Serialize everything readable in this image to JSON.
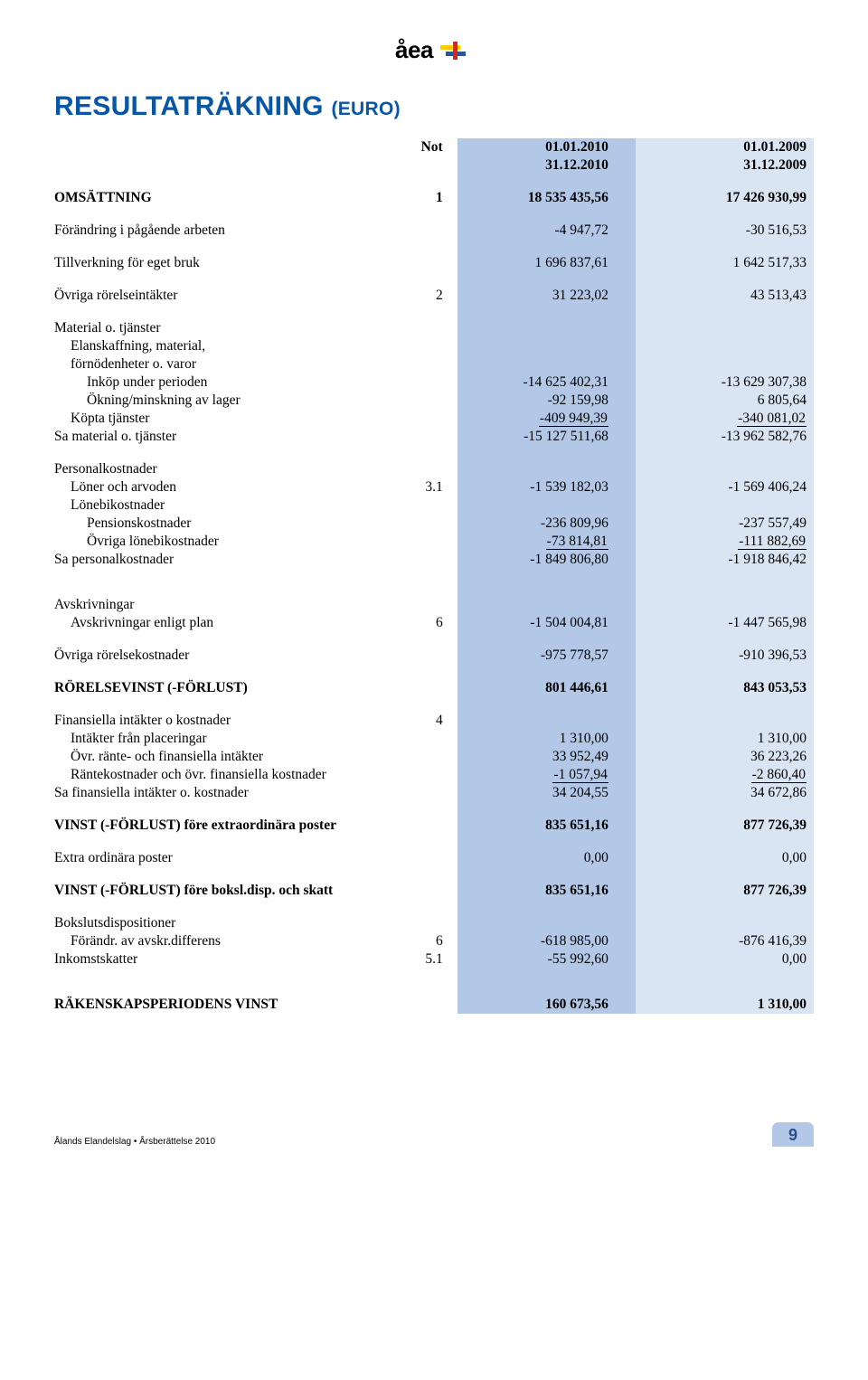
{
  "logo_text": "åea",
  "title_main": "RESULTATRÄKNING",
  "title_sub": "(EURO)",
  "title_color": "#0857a6",
  "header": {
    "not": "Not",
    "p1_a": "01.01.2010",
    "p1_b": "31.12.2010",
    "p2_a": "01.01.2009",
    "p2_b": "31.12.2009"
  },
  "rows": [
    {
      "label": "OMSÄTTNING",
      "not": "1",
      "v1": "18 535 435,56",
      "v2": "17 426 930,99",
      "bold": true,
      "spacer_before": true
    },
    {
      "label": "Förändring i pågående arbeten",
      "not": "",
      "v1": "-4 947,72",
      "v2": "-30 516,53",
      "spacer_before": true
    },
    {
      "label": "Tillverkning för eget bruk",
      "not": "",
      "v1": "1 696 837,61",
      "v2": "1 642 517,33",
      "spacer_before": true
    },
    {
      "label": "Övriga rörelseintäkter",
      "not": "2",
      "v1": "31 223,02",
      "v2": "43 513,43",
      "spacer_before": true
    },
    {
      "label": "Material o. tjänster",
      "not": "",
      "v1": "",
      "v2": "",
      "spacer_before": true
    },
    {
      "label": "Elanskaffning, material,",
      "not": "",
      "v1": "",
      "v2": "",
      "indent": 1
    },
    {
      "label": "förnödenheter o. varor",
      "not": "",
      "v1": "",
      "v2": "",
      "indent": 1
    },
    {
      "label": "Inköp under perioden",
      "not": "",
      "v1": "-14 625 402,31",
      "v2": "-13 629 307,38",
      "indent": 2
    },
    {
      "label": "Ökning/minskning av lager",
      "not": "",
      "v1": "-92 159,98",
      "v2": "6 805,64",
      "indent": 2
    },
    {
      "label": "Köpta tjänster",
      "not": "",
      "v1": "-409 949,39",
      "v2": "-340 081,02",
      "indent": 1,
      "underline": true
    },
    {
      "label": "Sa material o. tjänster",
      "not": "",
      "v1": "-15 127 511,68",
      "v2": "-13 962 582,76"
    },
    {
      "label": "Personalkostnader",
      "not": "",
      "v1": "",
      "v2": "",
      "spacer_before": true
    },
    {
      "label": "Löner och arvoden",
      "not": "3.1",
      "v1": "-1 539 182,03",
      "v2": "-1 569 406,24",
      "indent": 1
    },
    {
      "label": "Lönebikostnader",
      "not": "",
      "v1": "",
      "v2": "",
      "indent": 1
    },
    {
      "label": "Pensionskostnader",
      "not": "",
      "v1": "-236 809,96",
      "v2": "-237 557,49",
      "indent": 2
    },
    {
      "label": "Övriga lönebikostnader",
      "not": "",
      "v1": "-73 814,81",
      "v2": "-111 882,69",
      "indent": 2,
      "underline": true
    },
    {
      "label": "Sa personalkostnader",
      "not": "",
      "v1": "-1 849 806,80",
      "v2": "-1 918 846,42"
    },
    {
      "label": "Avskrivningar",
      "not": "",
      "v1": "",
      "v2": "",
      "spacer_before": true,
      "spacer_before_big": true
    },
    {
      "label": "Avskrivningar enligt plan",
      "not": "6",
      "v1": "-1 504 004,81",
      "v2": "-1 447 565,98",
      "indent": 1
    },
    {
      "label": "Övriga rörelsekostnader",
      "not": "",
      "v1": "-975 778,57",
      "v2": "-910 396,53",
      "spacer_before": true
    },
    {
      "label": "RÖRELSEVINST (-FÖRLUST)",
      "not": "",
      "v1": "801 446,61",
      "v2": "843 053,53",
      "bold": true,
      "spacer_before": true
    },
    {
      "label": "Finansiella intäkter o kostnader",
      "not": "4",
      "v1": "",
      "v2": "",
      "spacer_before": true
    },
    {
      "label": "Intäkter från placeringar",
      "not": "",
      "v1": "1 310,00",
      "v2": "1 310,00",
      "indent": 1
    },
    {
      "label": "Övr. ränte- och finansiella intäkter",
      "not": "",
      "v1": "33 952,49",
      "v2": "36 223,26",
      "indent": 1
    },
    {
      "label": "Räntekostnader och övr. finansiella kostnader",
      "not": "",
      "v1": "-1 057,94",
      "v2": "-2 860,40",
      "indent": 1,
      "underline": true
    },
    {
      "label": "Sa finansiella intäkter o. kostnader",
      "not": "",
      "v1": "34 204,55",
      "v2": "34 672,86"
    },
    {
      "label": "VINST (-FÖRLUST) före extraordinära poster",
      "not": "",
      "v1": "835 651,16",
      "v2": "877 726,39",
      "bold": true,
      "spacer_before": true
    },
    {
      "label": "Extra ordinära poster",
      "not": "",
      "v1": "0,00",
      "v2": "0,00",
      "spacer_before": true
    },
    {
      "label": "VINST (-FÖRLUST) före boksl.disp. och skatt",
      "not": "",
      "v1": "835 651,16",
      "v2": "877 726,39",
      "bold": true,
      "spacer_before": true
    },
    {
      "label": "Bokslutsdispositioner",
      "not": "",
      "v1": "",
      "v2": "",
      "spacer_before": true
    },
    {
      "label": "Förändr. av avskr.differens",
      "not": "6",
      "v1": "-618 985,00",
      "v2": "-876 416,39",
      "indent": 1
    },
    {
      "label": "Inkomstskatter",
      "not": "5.1",
      "v1": "-55 992,60",
      "v2": "0,00"
    },
    {
      "label": "RÄKENSKAPSPERIODENS VINST",
      "not": "",
      "v1": "160 673,56",
      "v2": "1 310,00",
      "bold": true,
      "spacer_before": true,
      "spacer_before_big": true
    }
  ],
  "footer_text": "Ålands Elandelslag • Årsberättelse 2010",
  "page_number": "9",
  "colors": {
    "shade1": "#b2c8e6",
    "shade2": "#dae5f3",
    "title": "#0857a6",
    "page_badge_text": "#2a4c8a"
  }
}
